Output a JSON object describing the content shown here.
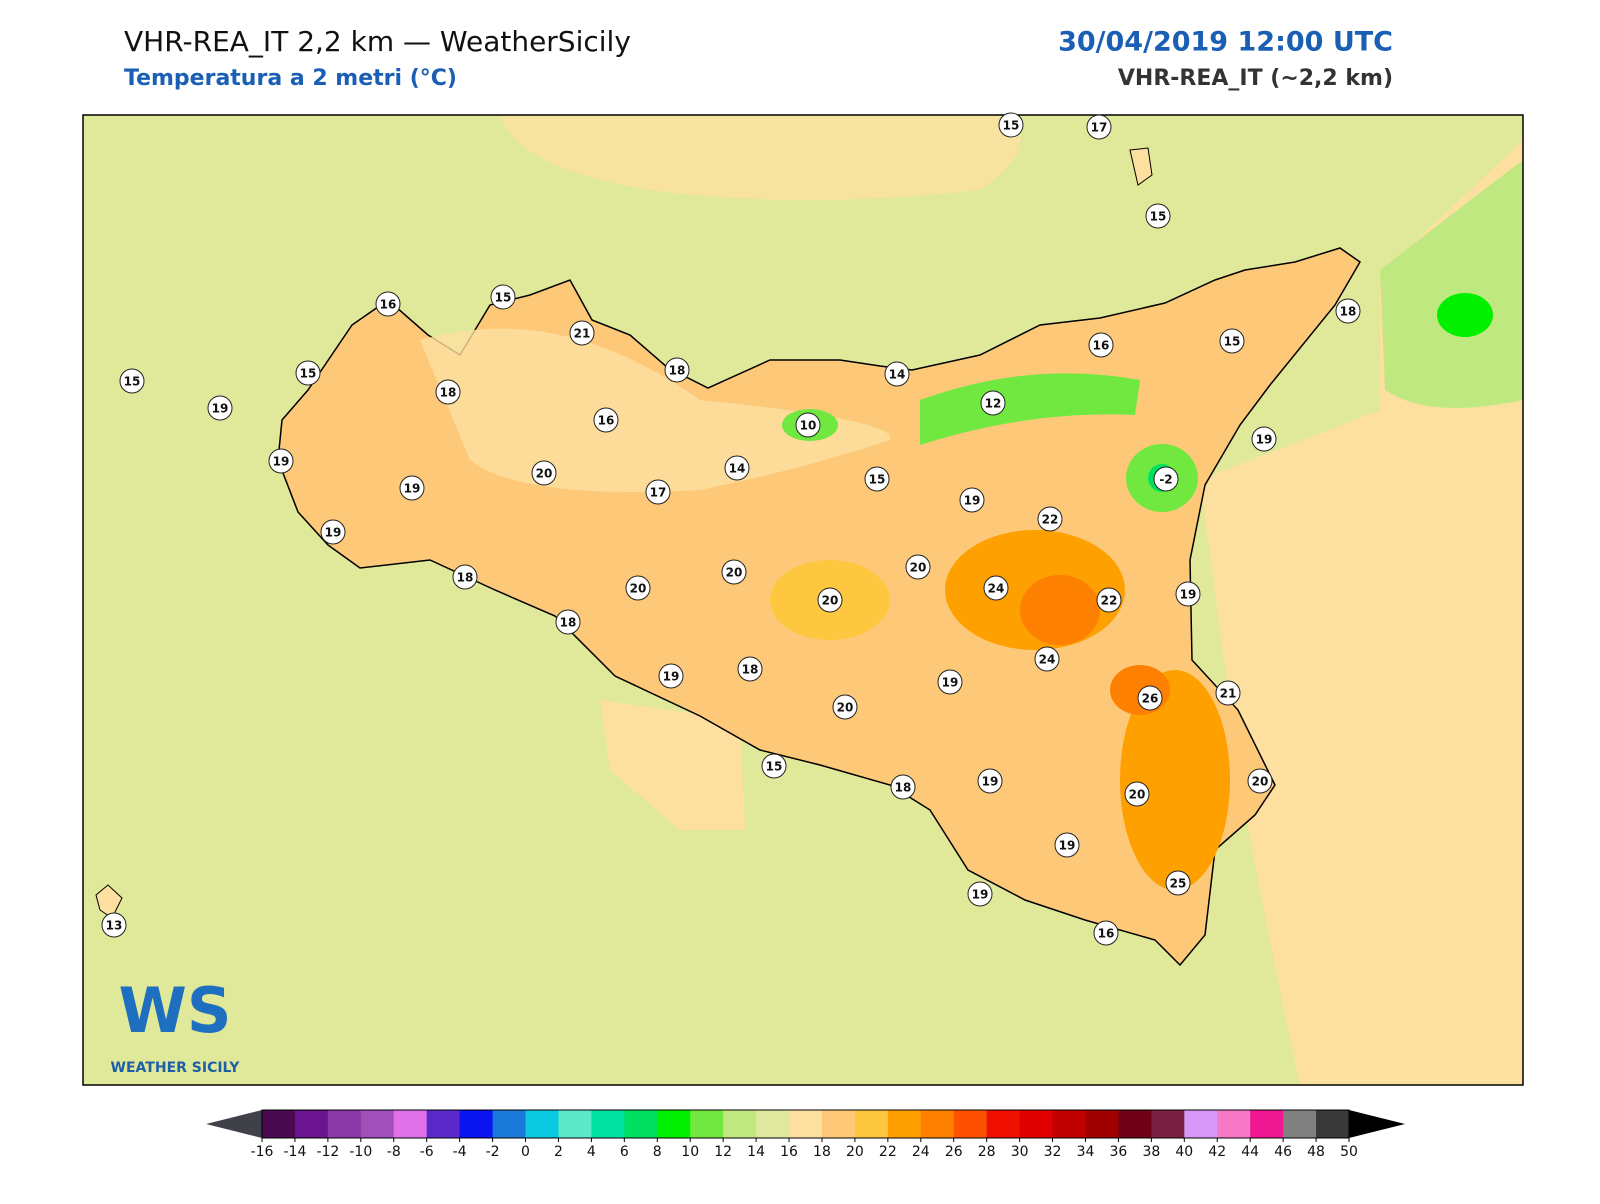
{
  "header": {
    "title": "VHR-REA_IT 2,2 km — WeatherSicily",
    "subtitle": "Temperatura a 2 metri (°C)",
    "datetime": "30/04/2019 12:00 UTC",
    "model": "VHR-REA_IT (~2,2 km)"
  },
  "stations": [
    15,
    17,
    15,
    16,
    15,
    21,
    18,
    15,
    16,
    14,
    15,
    15,
    18,
    18,
    19,
    12,
    10,
    16,
    19,
    19,
    20,
    14,
    15,
    -2,
    19,
    17,
    19,
    22,
    19,
    20,
    20,
    18,
    20,
    24,
    20,
    22,
    19,
    18,
    24,
    19,
    18,
    19,
    26,
    21,
    20,
    15,
    18,
    19,
    20,
    20,
    19,
    25,
    19,
    16,
    13
  ],
  "colorbar": {
    "ticks": [
      -16,
      -14,
      -12,
      -10,
      -8,
      -6,
      -4,
      -2,
      0,
      2,
      4,
      6,
      8,
      10,
      12,
      14,
      16,
      18,
      20,
      22,
      24,
      26,
      28,
      30,
      32,
      34,
      36,
      38,
      40,
      42,
      44,
      46,
      48,
      50
    ],
    "colors": [
      "#4a0a50",
      "#6a1490",
      "#8a3aa8",
      "#a050b8",
      "#e070e8",
      "#5a28c8",
      "#0a14f0",
      "#1a78d8",
      "#0ac8e0",
      "#5ae8c8",
      "#00e0a0",
      "#00e060",
      "#00f000",
      "#70e840",
      "#c0e880",
      "#e0e8a0",
      "#fde0a0",
      "#fdc878",
      "#fdc840",
      "#fda000",
      "#fd8000",
      "#fd5000",
      "#f01000",
      "#e00000",
      "#c00000",
      "#a00000",
      "#700018",
      "#7a2040",
      "#d898f8",
      "#f878c8",
      "#f01890",
      "#808080",
      "#383838"
    ],
    "under_color": "#404048",
    "over_color": "#000000"
  },
  "logo": {
    "mark": "WS",
    "name": "WEATHER SICILY"
  }
}
